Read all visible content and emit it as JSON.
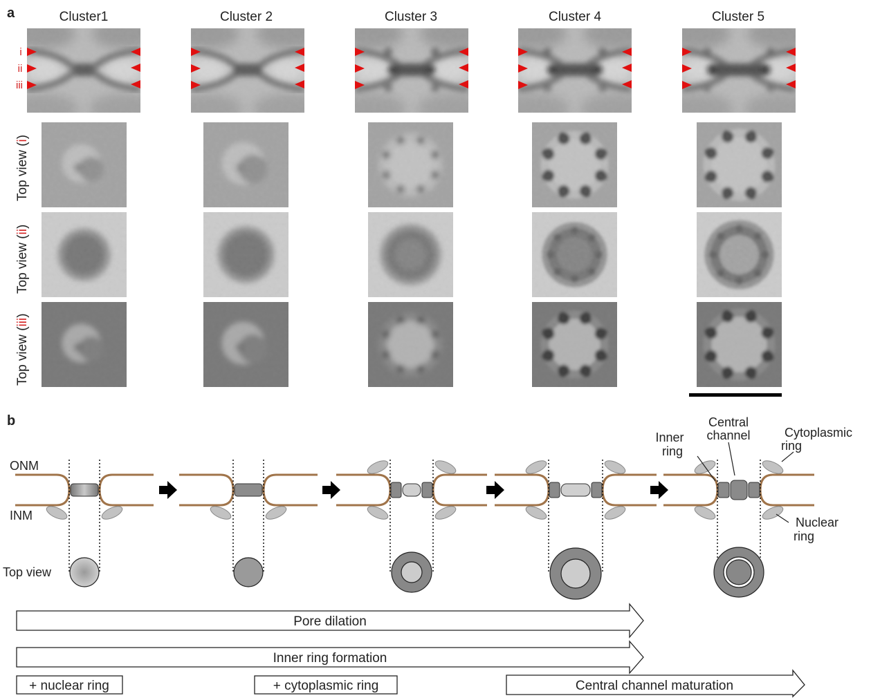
{
  "panels": {
    "a": "a",
    "b": "b"
  },
  "clusters": [
    {
      "name": "Cluster1",
      "stage": 0
    },
    {
      "name": "Cluster 2",
      "stage": 1
    },
    {
      "name": "Cluster 3",
      "stage": 2
    },
    {
      "name": "Cluster 4",
      "stage": 3
    },
    {
      "name": "Cluster 5",
      "stage": 4
    }
  ],
  "level_markers": [
    "i",
    "ii",
    "iii"
  ],
  "row_labels": [
    {
      "prefix": "Top view (",
      "roman": "i",
      "suffix": ")"
    },
    {
      "prefix": "Top view (",
      "roman": "ii",
      "suffix": ")"
    },
    {
      "prefix": "Top view (",
      "roman": "iii",
      "suffix": ")"
    }
  ],
  "schematic": {
    "onm": "ONM",
    "inm": "INM",
    "top_view": "Top view",
    "inner_ring": [
      "Inner",
      "ring"
    ],
    "central_channel": [
      "Central",
      "channel"
    ],
    "cytoplasmic_ring": [
      "Cytoplasmic",
      "ring"
    ],
    "nuclear_ring": [
      "Nuclear",
      "ring"
    ]
  },
  "process_arrows": {
    "pore_dilation": "Pore dilation",
    "inner_ring_formation": "Inner ring formation",
    "nuclear_ring": "+ nuclear ring",
    "cytoplasmic_ring": "+ cytoplasmic ring",
    "central_channel_maturation": "Central channel maturation"
  },
  "colors": {
    "marker": "#e01010",
    "membrane": "#a0744a",
    "ring_dark": "#8a8a8a",
    "ring_light": "#cfcfcf",
    "ellipse": "#c2c2c2"
  }
}
